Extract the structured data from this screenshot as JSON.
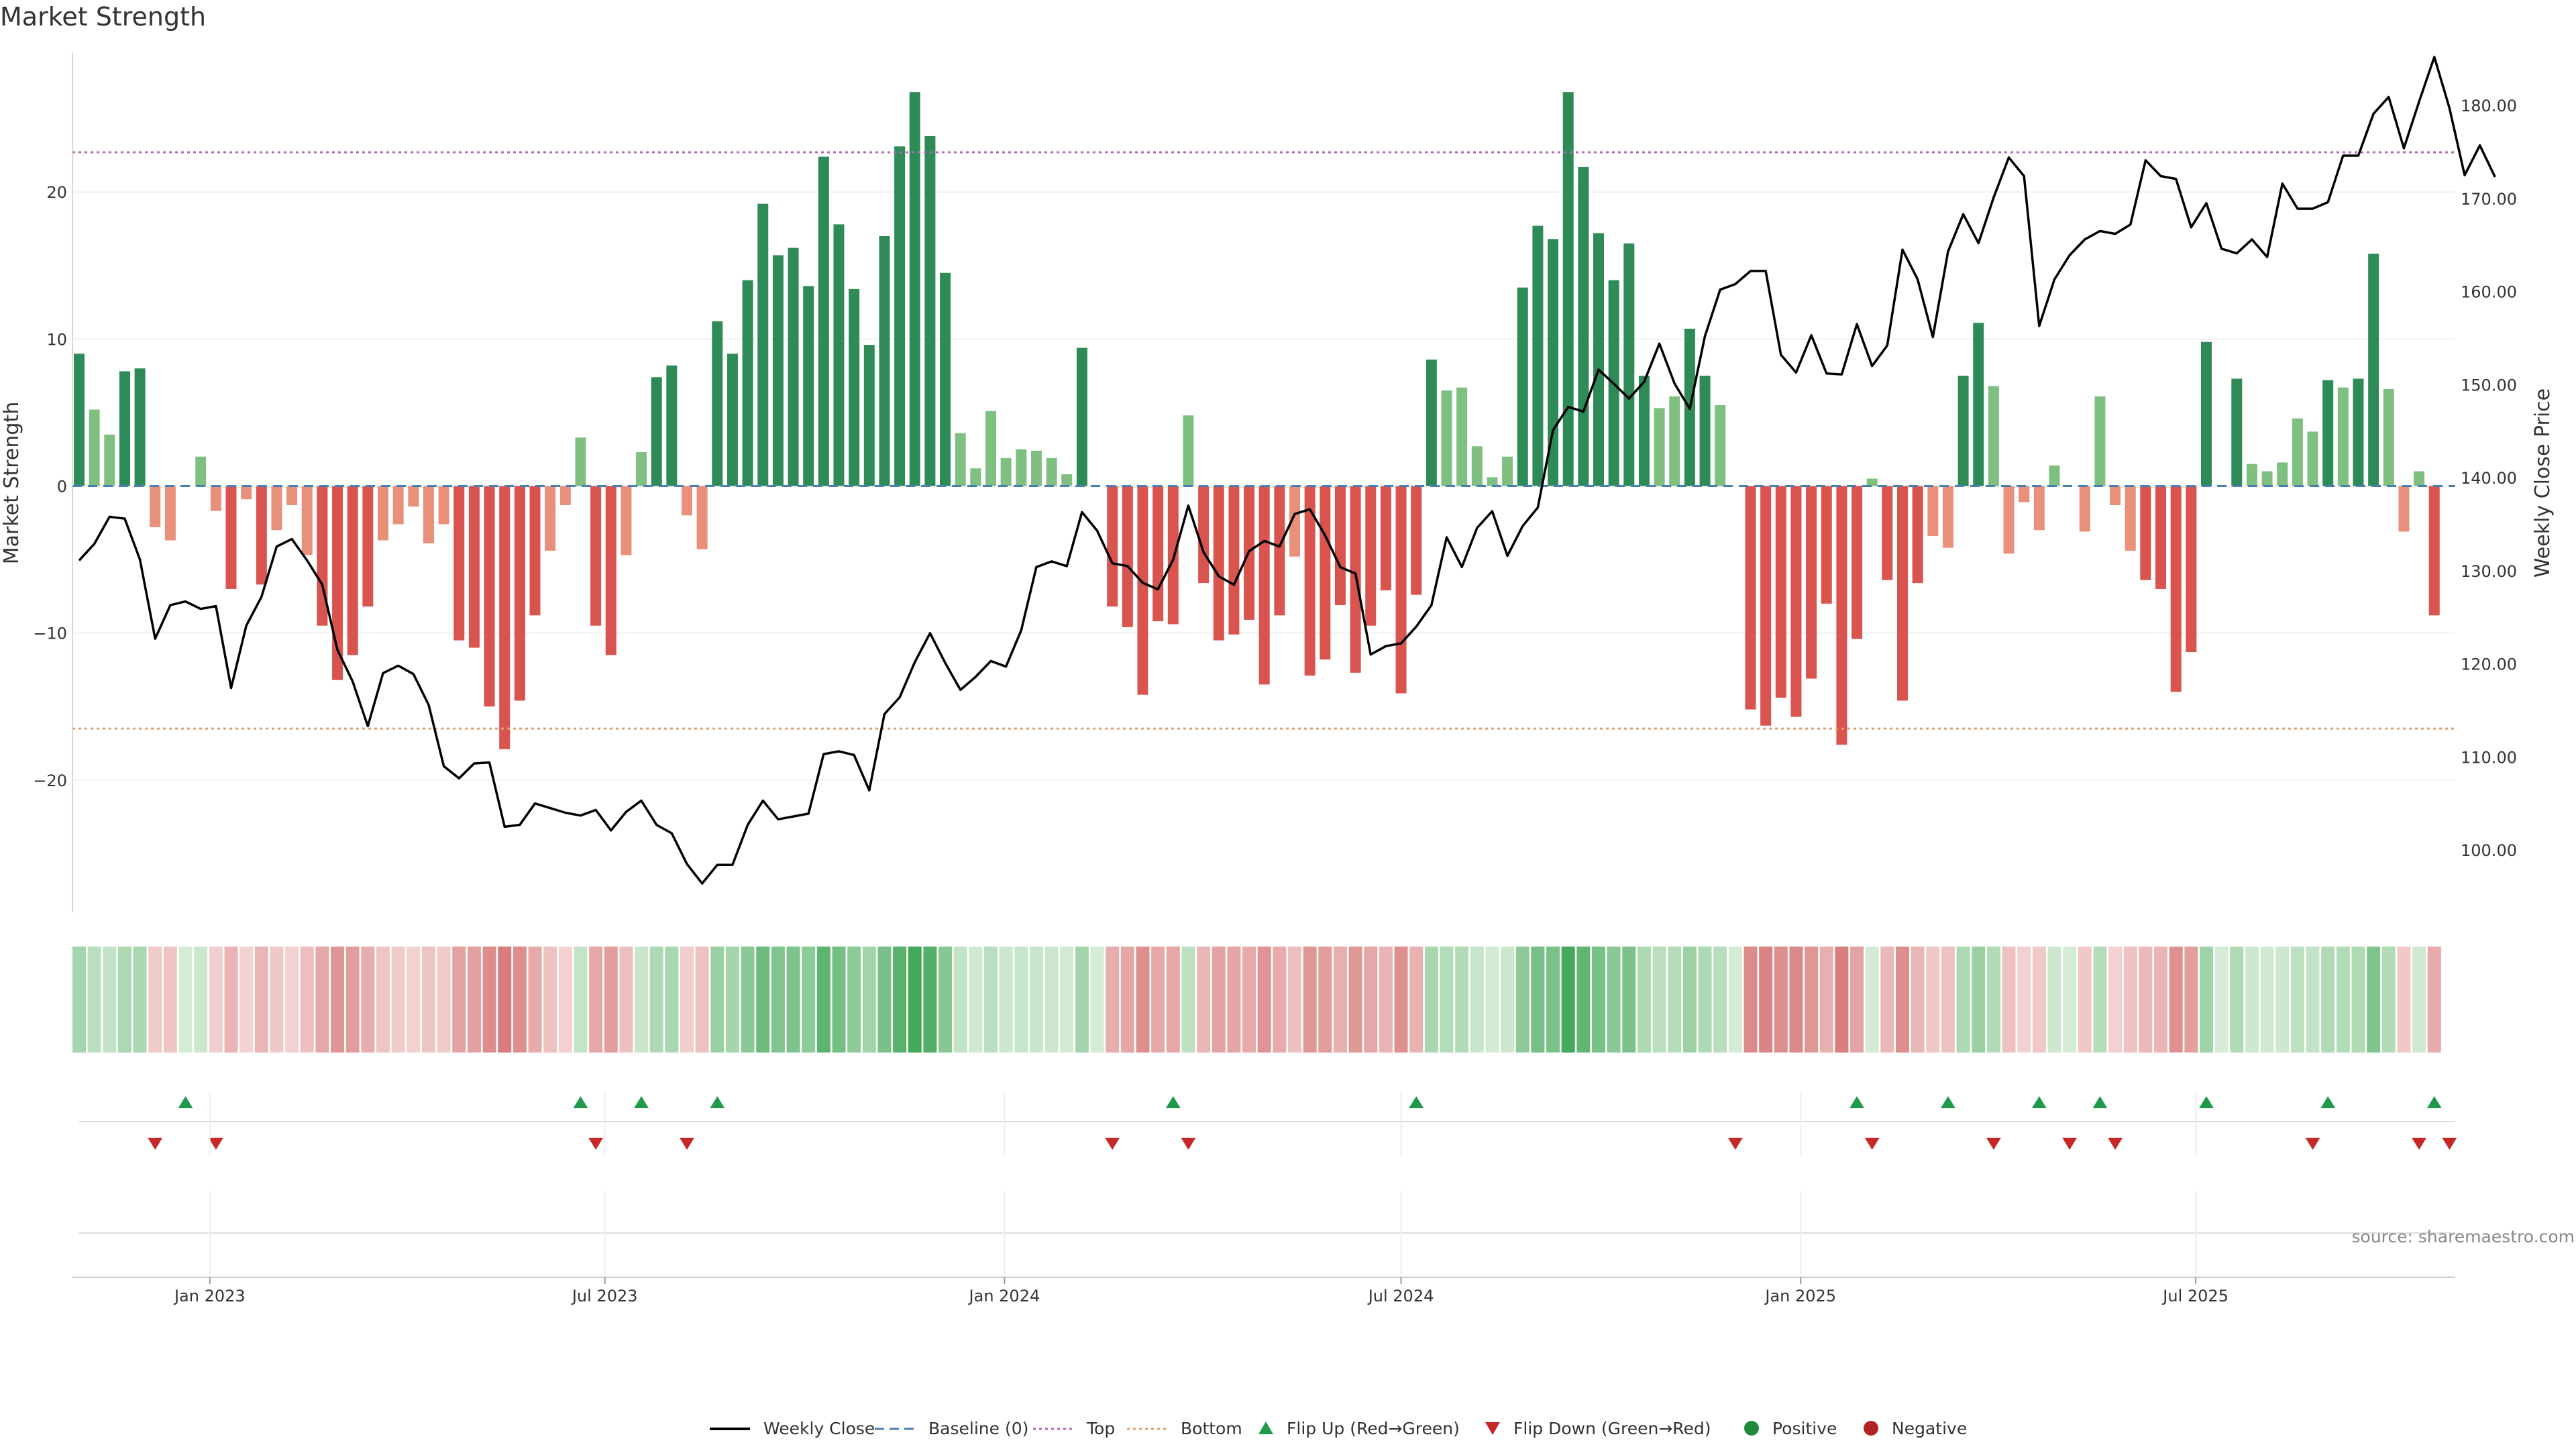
{
  "chart_data": {
    "type": "bar",
    "title": "Market Strength",
    "ylabel_left": "Market Strength",
    "ylabel_right": "Weekly Close Price",
    "source": "source: sharemaestro.com",
    "ylim_left": [
      -29,
      29.5
    ],
    "yticks_left": [
      20,
      10,
      0,
      -10,
      -20
    ],
    "ylim_right": [
      93.3,
      185.7
    ],
    "yticks_right": [
      "180.00",
      "170.00",
      "160.00",
      "150.00",
      "140.00",
      "130.00",
      "120.00",
      "110.00",
      "100.00"
    ],
    "yticks_right_values": [
      180,
      170,
      160,
      150,
      140,
      130,
      120,
      110,
      100
    ],
    "top_level": 22.7,
    "bottom_level": -16.5,
    "x_ticks": [
      {
        "label": "Jan 2023",
        "week": 8.6
      },
      {
        "label": "Jul 2023",
        "week": 34.6
      },
      {
        "label": "Jan 2024",
        "week": 60.9
      },
      {
        "label": "Jul 2024",
        "week": 87.0
      },
      {
        "label": "Jan 2025",
        "week": 113.3
      },
      {
        "label": "Jul 2025",
        "week": 139.3
      }
    ],
    "strength": [
      9.0,
      5.2,
      3.5,
      7.8,
      8.0,
      -2.8,
      -3.7,
      0.2,
      2.0,
      -1.7,
      -7.0,
      -0.9,
      -6.7,
      -3.0,
      -1.3,
      -4.7,
      -9.5,
      -13.2,
      -11.5,
      -8.2,
      -3.7,
      -2.6,
      -1.4,
      -3.9,
      -2.6,
      -10.5,
      -11.0,
      -15.0,
      -17.9,
      -14.6,
      -8.8,
      -4.4,
      -1.3,
      3.3,
      -9.5,
      -11.5,
      -4.7,
      2.3,
      7.4,
      8.2,
      -2.0,
      -4.3,
      11.2,
      9.0,
      14.0,
      19.2,
      15.7,
      16.2,
      13.6,
      22.4,
      17.8,
      13.4,
      9.6,
      17.0,
      23.1,
      26.8,
      23.8,
      14.5,
      3.6,
      1.2,
      5.1,
      1.9,
      2.5,
      2.4,
      1.9,
      0.8,
      9.4,
      0.3,
      -8.2,
      -9.6,
      -14.2,
      -9.2,
      -9.4,
      4.8,
      -6.6,
      -10.5,
      -10.1,
      -9.1,
      -13.5,
      -8.8,
      -4.8,
      -12.9,
      -11.8,
      -8.1,
      -12.7,
      -9.5,
      -7.1,
      -14.1,
      -7.4,
      8.6,
      6.5,
      6.7,
      2.7,
      0.6,
      2.0,
      13.5,
      17.7,
      16.8,
      26.8,
      21.7,
      17.2,
      14.0,
      16.5,
      7.5,
      5.3,
      6.1,
      10.7,
      7.5,
      5.5,
      0.3,
      -15.2,
      -16.3,
      -14.4,
      -15.7,
      -13.1,
      -8.0,
      -17.6,
      -10.4,
      0.5,
      -6.4,
      -14.6,
      -6.6,
      -3.4,
      -4.2,
      7.5,
      11.1,
      6.8,
      -4.6,
      -1.1,
      -3.0,
      1.4,
      0.2,
      -3.1,
      6.1,
      -1.3,
      -4.4,
      -6.4,
      -7.0,
      -14.0,
      -11.3,
      9.8,
      0.1,
      7.3,
      1.5,
      1.0,
      1.6,
      4.6,
      3.7,
      7.2,
      6.7,
      7.3,
      15.8,
      6.6,
      -3.1,
      1.0,
      -8.8
    ],
    "weekly_close": [
      131.1,
      132.9,
      135.8,
      135.6,
      131.2,
      122.7,
      126.3,
      126.7,
      125.9,
      126.2,
      117.4,
      124.1,
      127.2,
      132.6,
      133.4,
      131.1,
      128.5,
      121.5,
      118.1,
      113.3,
      119.0,
      119.8,
      118.9,
      115.6,
      109.0,
      107.7,
      109.3,
      109.4,
      102.5,
      102.7,
      105.0,
      104.5,
      104.0,
      103.7,
      104.3,
      102.1,
      104.1,
      105.3,
      102.7,
      101.8,
      98.5,
      96.4,
      98.4,
      98.4,
      102.7,
      105.3,
      103.3,
      103.6,
      103.9,
      110.3,
      110.6,
      110.2,
      106.4,
      114.6,
      116.4,
      120.2,
      123.3,
      120.1,
      117.2,
      118.6,
      120.3,
      119.7,
      123.6,
      130.4,
      131.0,
      130.5,
      136.3,
      134.3,
      130.8,
      130.5,
      128.7,
      128.0,
      131.2,
      137.0,
      132.0,
      129.4,
      128.5,
      132.1,
      133.2,
      132.6,
      136.1,
      136.6,
      133.8,
      130.4,
      129.7,
      121.0,
      121.9,
      122.2,
      124.0,
      126.3,
      133.6,
      130.4,
      134.6,
      136.4,
      131.6,
      134.8,
      136.8,
      145.1,
      147.6,
      147.1,
      151.6,
      150.1,
      148.5,
      150.3,
      154.4,
      150.1,
      147.4,
      155.2,
      160.2,
      160.8,
      162.2,
      162.2,
      153.2,
      151.3,
      155.3,
      151.2,
      151.1,
      156.5,
      152.0,
      154.2,
      164.5,
      161.3,
      155.1,
      164.3,
      168.3,
      165.2,
      170.1,
      174.4,
      172.4,
      156.3,
      161.3,
      163.9,
      165.6,
      166.5,
      166.2,
      167.2,
      174.1,
      172.4,
      172.1,
      166.9,
      169.5,
      164.6,
      164.1,
      165.6,
      163.7,
      171.6,
      168.9,
      168.9,
      169.6,
      174.6,
      174.6,
      179.1,
      180.9,
      175.4,
      180.4,
      185.2,
      179.7,
      172.5,
      175.7,
      172.3
    ],
    "flip_up_weeks": [
      7,
      33,
      37,
      42,
      72,
      88,
      117,
      123,
      129,
      133,
      140,
      148,
      155
    ],
    "flip_down_weeks": [
      5,
      9,
      34,
      40,
      68,
      73,
      109,
      118,
      126,
      131,
      134,
      147,
      154,
      156
    ],
    "legend": [
      "Weekly Close",
      "Baseline (0)",
      "Top",
      "Bottom",
      "Flip Up (Red→Green)",
      "Flip Down (Green→Red)",
      "Positive",
      "Negative"
    ],
    "colors": {
      "pos_strong": "#2e8b57",
      "pos_light": "#7fc081",
      "neg_strong": "#d9534f",
      "neg_light": "#e8907a",
      "price_line": "#000000",
      "baseline": "#4a7fb5",
      "top_line": "#b36ab3",
      "bottom_line": "#e0a070",
      "flip_up": "#1f9a4b",
      "flip_down": "#c62828",
      "positive_dot": "#1e8a3a",
      "negative_dot": "#b22222"
    }
  }
}
